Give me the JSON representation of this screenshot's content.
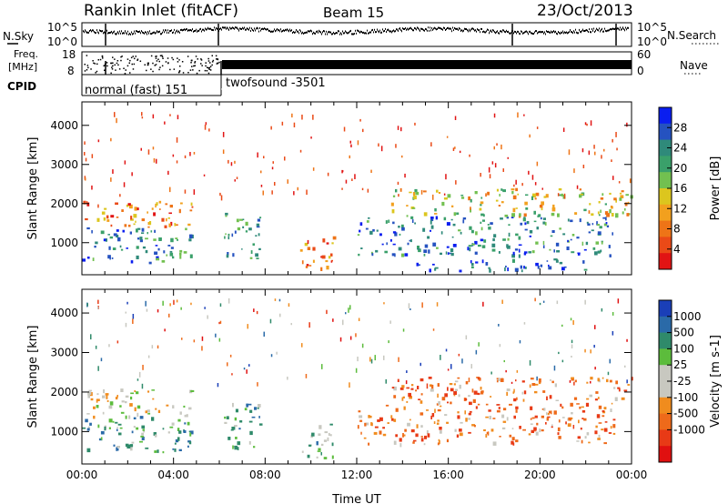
{
  "header": {
    "station": "Rankin Inlet (fitACF)",
    "beam": "Beam 15",
    "date": "23/Oct/2013"
  },
  "summary": {
    "left_labels": {
      "nsky": "N.Sky",
      "freq_line1": "Freq.",
      "freq_line2": "[MHz]",
      "cpid": "CPID"
    },
    "right_labels": {
      "nsearch": "N.Search",
      "nave": "Nave"
    },
    "nsky_ticks": [
      "10^5",
      "10^0"
    ],
    "nsearch_ticks": [
      "10^5",
      "10^0"
    ],
    "freq_ticks": [
      "18",
      "8"
    ],
    "nave_ticks": [
      "60",
      "0"
    ],
    "cpid_segments": [
      {
        "label": "normal (fast) 151",
        "start_hour": 0.0,
        "end_hour": 6.0
      },
      {
        "label": "twofsound -3501",
        "start_hour": 6.0,
        "end_hour": 24.0
      }
    ]
  },
  "chart_data": [
    {
      "type": "heatmap",
      "panel": "power",
      "title": "",
      "xlabel": "",
      "ylabel": "Slant Range [km]",
      "xlim": [
        0,
        24
      ],
      "ylim": [
        180,
        4600
      ],
      "x_ticks": [
        0,
        4,
        8,
        12,
        16,
        20,
        24
      ],
      "y_ticks": [
        1000,
        2000,
        3000,
        4000
      ],
      "y_tick_labels": [
        "1000",
        "2000",
        "3000",
        "4000"
      ],
      "colorbar": {
        "label": "Power [dB]",
        "tick_labels": [
          "28",
          "24",
          "20",
          "16",
          "12",
          "8",
          "4"
        ],
        "tick_values": [
          28,
          24,
          20,
          16,
          12,
          8,
          4
        ],
        "range": [
          0,
          32
        ],
        "colors": [
          "#0a1ef0",
          "#2552c0",
          "#2f8a7a",
          "#3aa06a",
          "#72c050",
          "#dcc61e",
          "#f2a01e",
          "#ee7417",
          "#ea4a17",
          "#e11414"
        ]
      },
      "regions": [
        {
          "x_start": 0.0,
          "x_end": 4.8,
          "range_start": 500,
          "range_end": 1400,
          "typical_value": 24
        },
        {
          "x_start": 0.0,
          "x_end": 4.8,
          "range_start": 1400,
          "range_end": 2100,
          "typical_value": 9
        },
        {
          "x_start": 6.2,
          "x_end": 7.8,
          "range_start": 600,
          "range_end": 1800,
          "typical_value": 22
        },
        {
          "x_start": 9.5,
          "x_end": 11.0,
          "range_start": 300,
          "range_end": 1200,
          "typical_value": 8
        },
        {
          "x_start": 12.0,
          "x_end": 23.2,
          "range_start": 700,
          "range_end": 1700,
          "typical_value": 24
        },
        {
          "x_start": 14.5,
          "x_end": 22.0,
          "range_start": 300,
          "range_end": 600,
          "typical_value": 28
        },
        {
          "x_start": 13.5,
          "x_end": 24.0,
          "range_start": 1700,
          "range_end": 2400,
          "typical_value": 14
        }
      ]
    },
    {
      "type": "heatmap",
      "panel": "velocity",
      "title": "",
      "xlabel": "Time UT",
      "ylabel": "Slant Range [km]",
      "xlim": [
        0,
        24
      ],
      "ylim": [
        180,
        4600
      ],
      "x_ticks": [
        0,
        4,
        8,
        12,
        16,
        20,
        24
      ],
      "x_tick_labels": [
        "00:00",
        "04:00",
        "08:00",
        "12:00",
        "16:00",
        "20:00",
        "00:00"
      ],
      "y_ticks": [
        1000,
        2000,
        3000,
        4000
      ],
      "y_tick_labels": [
        "1000",
        "2000",
        "3000",
        "4000"
      ],
      "colorbar": {
        "label": "Velocity [m s-1]",
        "tick_labels": [
          "1000",
          "500",
          "100",
          "25",
          "-25",
          "-100",
          "-500",
          "-1000"
        ],
        "colors": [
          "#1a3fb8",
          "#2a6aa8",
          "#2f8a6a",
          "#5cbc3c",
          "#c8c8c0",
          "#c8c8c0",
          "#f08c1e",
          "#ee6a1a",
          "#e83a16",
          "#e01010"
        ]
      },
      "regions": [
        {
          "x_start": 0.0,
          "x_end": 4.8,
          "range_start": 500,
          "range_end": 1400,
          "typical_value": 300
        },
        {
          "x_start": 0.0,
          "x_end": 4.8,
          "range_start": 1400,
          "range_end": 2100,
          "typical_value": 0
        },
        {
          "x_start": 6.2,
          "x_end": 7.8,
          "range_start": 600,
          "range_end": 1800,
          "typical_value": 300
        },
        {
          "x_start": 9.5,
          "x_end": 11.0,
          "range_start": 300,
          "range_end": 1200,
          "typical_value": 200
        },
        {
          "x_start": 12.0,
          "x_end": 23.2,
          "range_start": 700,
          "range_end": 1700,
          "typical_value": -300
        },
        {
          "x_start": 13.5,
          "x_end": 24.0,
          "range_start": 1700,
          "range_end": 2400,
          "typical_value": -300
        }
      ]
    }
  ]
}
